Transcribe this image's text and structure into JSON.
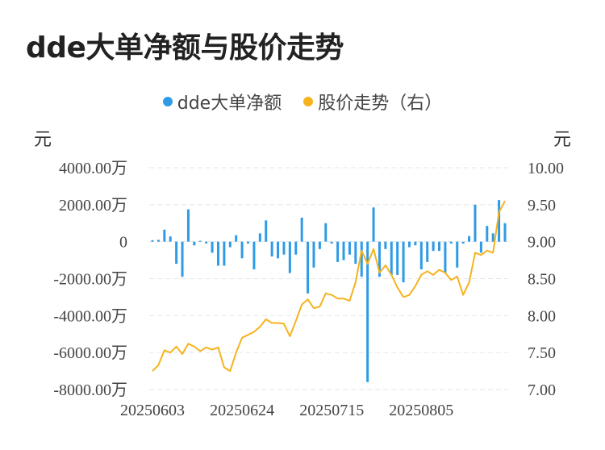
{
  "title": "dde大单净额与股价走势",
  "legend": [
    {
      "label": "dde大单净额",
      "color": "#2f9be6"
    },
    {
      "label": "股价走势（右）",
      "color": "#f5b31e"
    }
  ],
  "units": {
    "left": "元",
    "right": "元"
  },
  "chart_data": {
    "type": "bar+line",
    "x_tick_labels": [
      "20250603",
      "20250624",
      "20250715",
      "20250805"
    ],
    "x_tick_indices": [
      0,
      15,
      30,
      45
    ],
    "left_axis": {
      "ticks": [
        4000,
        2000,
        0,
        -2000,
        -4000,
        -6000,
        -8000
      ],
      "tick_labels": [
        "4000.00万",
        "2000.00万",
        "0",
        "-2000.00万",
        "-4000.00万",
        "-6000.00万",
        "-8000.00万"
      ],
      "range": [
        -8000,
        4000
      ]
    },
    "right_axis": {
      "ticks": [
        10.0,
        9.5,
        9.0,
        8.5,
        8.0,
        7.5,
        7.0
      ],
      "tick_labels": [
        "10.00",
        "9.50",
        "9.00",
        "8.50",
        "8.00",
        "7.50",
        "7.00"
      ],
      "range": [
        7.0,
        10.0
      ]
    },
    "grid": true,
    "series": [
      {
        "name": "dde大单净额",
        "type": "bar",
        "axis": "left",
        "color": "#2f9be6",
        "values": [
          80,
          100,
          650,
          280,
          -1200,
          -1900,
          1750,
          -200,
          50,
          -100,
          -600,
          -1300,
          -1300,
          -300,
          350,
          -900,
          -100,
          -1500,
          450,
          1150,
          -800,
          -900,
          -700,
          -1700,
          -700,
          1300,
          -2800,
          -1400,
          -400,
          1000,
          -100,
          -1100,
          -1000,
          -700,
          -1200,
          -1900,
          -7600,
          1850,
          -1900,
          -400,
          -1800,
          -1800,
          -2200,
          -300,
          -200,
          -1500,
          -1100,
          -500,
          -500,
          -1700,
          -100,
          -1400,
          -100,
          300,
          2000,
          -600,
          850,
          450,
          2250,
          1000
        ]
      },
      {
        "name": "股价走势（右）",
        "type": "line",
        "axis": "right",
        "color": "#f5b31e",
        "values": [
          7.25,
          7.33,
          7.53,
          7.5,
          7.58,
          7.48,
          7.62,
          7.58,
          7.52,
          7.57,
          7.54,
          7.57,
          7.3,
          7.25,
          7.5,
          7.7,
          7.74,
          7.78,
          7.85,
          7.95,
          7.9,
          7.9,
          7.89,
          7.72,
          7.93,
          8.15,
          8.22,
          8.1,
          8.12,
          8.3,
          8.28,
          8.23,
          8.23,
          8.2,
          8.45,
          8.88,
          8.7,
          8.9,
          8.58,
          8.68,
          8.55,
          8.38,
          8.25,
          8.28,
          8.4,
          8.55,
          8.6,
          8.55,
          8.62,
          8.58,
          8.48,
          8.53,
          8.28,
          8.45,
          8.85,
          8.82,
          8.88,
          8.85,
          9.4,
          9.55
        ]
      }
    ]
  }
}
